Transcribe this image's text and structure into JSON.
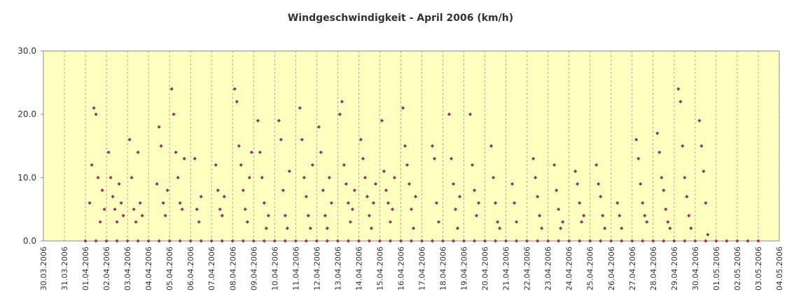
{
  "chart_data": {
    "type": "scatter",
    "title": "Windgeschwindigkeit - April 2006 (km/h)",
    "color": "#993366",
    "background": "#ffffc0",
    "grid": "x",
    "xlim": [
      0,
      35
    ],
    "ylim": [
      0,
      30
    ],
    "yticks": [
      {
        "value": 0,
        "label": "0.0"
      },
      {
        "value": 10,
        "label": "10.0"
      },
      {
        "value": 20,
        "label": "20.0"
      },
      {
        "value": 30,
        "label": "30.0"
      }
    ],
    "xticks": [
      {
        "value": 0,
        "label": "30.03.2006"
      },
      {
        "value": 1,
        "label": "31.03.2006"
      },
      {
        "value": 2,
        "label": "01.04.2006"
      },
      {
        "value": 3,
        "label": "02.04.2006"
      },
      {
        "value": 4,
        "label": "03.04.2006"
      },
      {
        "value": 5,
        "label": "04.04.2006"
      },
      {
        "value": 6,
        "label": "05.04.2006"
      },
      {
        "value": 7,
        "label": "06.04.2006"
      },
      {
        "value": 8,
        "label": "07.04.2006"
      },
      {
        "value": 9,
        "label": "08.04.2006"
      },
      {
        "value": 10,
        "label": "09.04.2006"
      },
      {
        "value": 11,
        "label": "10.04.2006"
      },
      {
        "value": 12,
        "label": "11.04.2006"
      },
      {
        "value": 13,
        "label": "12.04.2006"
      },
      {
        "value": 14,
        "label": "13.04.2006"
      },
      {
        "value": 15,
        "label": "14.04.2006"
      },
      {
        "value": 16,
        "label": "15.04.2006"
      },
      {
        "value": 17,
        "label": "16.04.2006"
      },
      {
        "value": 18,
        "label": "17.04.2006"
      },
      {
        "value": 19,
        "label": "18.04.2006"
      },
      {
        "value": 20,
        "label": "19.04.2006"
      },
      {
        "value": 21,
        "label": "20.04.2006"
      },
      {
        "value": 22,
        "label": "21.04.2006"
      },
      {
        "value": 23,
        "label": "22.04.2006"
      },
      {
        "value": 24,
        "label": "23.04.2006"
      },
      {
        "value": 25,
        "label": "24.04.2006"
      },
      {
        "value": 26,
        "label": "25.04.2006"
      },
      {
        "value": 27,
        "label": "26.04.2006"
      },
      {
        "value": 28,
        "label": "27.04.2006"
      },
      {
        "value": 29,
        "label": "28.04.2006"
      },
      {
        "value": 30,
        "label": "29.04.2006"
      },
      {
        "value": 31,
        "label": "30.04.2006"
      },
      {
        "value": 32,
        "label": "01.05.2006"
      },
      {
        "value": 33,
        "label": "02.05.2006"
      },
      {
        "value": 34,
        "label": "03.05.2006"
      },
      {
        "value": 35,
        "label": "04.05.2006"
      }
    ],
    "x": [
      2.2,
      2.3,
      2.4,
      2.5,
      2.6,
      2.7,
      2.8,
      2.9,
      3.1,
      3.2,
      3.3,
      3.4,
      3.5,
      3.6,
      3.7,
      3.8,
      4.1,
      4.2,
      4.3,
      4.4,
      4.5,
      4.6,
      4.7,
      5.4,
      5.5,
      5.6,
      5.7,
      5.8,
      5.9,
      6.1,
      6.2,
      6.3,
      6.4,
      6.5,
      6.6,
      6.7,
      7.2,
      7.3,
      7.4,
      7.5,
      8.2,
      8.3,
      8.4,
      8.5,
      8.6,
      9.1,
      9.2,
      9.3,
      9.4,
      9.5,
      9.6,
      9.7,
      9.8,
      9.9,
      10.2,
      10.3,
      10.4,
      10.5,
      10.6,
      10.7,
      11.2,
      11.3,
      11.4,
      11.5,
      11.6,
      11.7,
      12.2,
      12.3,
      12.4,
      12.5,
      12.6,
      12.7,
      12.8,
      13.1,
      13.2,
      13.3,
      13.4,
      13.5,
      13.6,
      13.7,
      14.1,
      14.2,
      14.3,
      14.4,
      14.5,
      14.6,
      14.7,
      14.8,
      15.1,
      15.2,
      15.3,
      15.4,
      15.5,
      15.6,
      15.7,
      15.8,
      16.1,
      16.2,
      16.3,
      16.4,
      16.5,
      16.6,
      16.7,
      17.1,
      17.2,
      17.3,
      17.4,
      17.5,
      17.6,
      17.7,
      18.5,
      18.6,
      18.7,
      18.8,
      19.3,
      19.4,
      19.5,
      19.6,
      19.7,
      19.8,
      20.3,
      20.4,
      20.5,
      20.6,
      20.7,
      21.3,
      21.4,
      21.5,
      21.6,
      21.7,
      22.3,
      22.4,
      22.5,
      23.3,
      23.4,
      23.5,
      23.6,
      23.7,
      24.3,
      24.4,
      24.5,
      24.6,
      24.7,
      25.3,
      25.4,
      25.5,
      25.6,
      25.7,
      26.3,
      26.4,
      26.5,
      26.6,
      26.7,
      27.3,
      27.4,
      27.5,
      28.2,
      28.3,
      28.4,
      28.5,
      28.6,
      28.7,
      29.2,
      29.3,
      29.4,
      29.5,
      29.6,
      29.7,
      29.8,
      30.2,
      30.3,
      30.4,
      30.5,
      30.6,
      30.7,
      30.8,
      31.2,
      31.3,
      31.4,
      31.5,
      31.6,
      2,
      2.5,
      3,
      3.5,
      4,
      4.5,
      5,
      5.5,
      6,
      6.5,
      7,
      7.5,
      8,
      8.5,
      9,
      9.5,
      10,
      10.5,
      11,
      11.5,
      12,
      12.5,
      13,
      13.5,
      14,
      14.5,
      15,
      15.5,
      16,
      16.5,
      17,
      17.5,
      18,
      18.5,
      19,
      19.5,
      20,
      20.5,
      21,
      21.5,
      22,
      22.5,
      23,
      23.5,
      24,
      24.5,
      25,
      25.5,
      26,
      26.5,
      27,
      27.5,
      28,
      28.5,
      29,
      29.5,
      30,
      30.5,
      31,
      31.5,
      32,
      32.5,
      33,
      33.5,
      34
    ],
    "values": [
      6,
      12,
      21,
      20,
      10,
      3,
      8,
      5,
      14,
      10,
      7,
      5,
      3,
      9,
      6,
      4,
      16,
      10,
      5,
      3,
      14,
      6,
      4,
      9,
      18,
      15,
      6,
      4,
      8,
      24,
      20,
      14,
      10,
      6,
      5,
      13,
      13,
      5,
      3,
      7,
      12,
      8,
      5,
      4,
      7,
      24,
      22,
      15,
      12,
      8,
      5,
      3,
      10,
      14,
      19,
      14,
      10,
      6,
      2,
      4,
      19,
      16,
      8,
      4,
      2,
      11,
      21,
      16,
      10,
      7,
      4,
      2,
      12,
      18,
      14,
      8,
      4,
      2,
      10,
      6,
      20,
      22,
      12,
      9,
      6,
      3,
      5,
      8,
      16,
      13,
      10,
      7,
      4,
      2,
      6,
      9,
      19,
      11,
      8,
      6,
      3,
      5,
      10,
      21,
      15,
      12,
      9,
      5,
      2,
      7,
      15,
      13,
      6,
      3,
      20,
      13,
      9,
      5,
      2,
      7,
      20,
      12,
      8,
      4,
      6,
      15,
      10,
      6,
      3,
      2,
      9,
      6,
      3,
      13,
      10,
      7,
      4,
      2,
      12,
      8,
      5,
      2,
      3,
      11,
      9,
      6,
      3,
      4,
      12,
      9,
      7,
      4,
      2,
      6,
      4,
      2,
      16,
      13,
      9,
      6,
      4,
      3,
      17,
      14,
      10,
      8,
      5,
      3,
      2,
      24,
      22,
      15,
      10,
      7,
      4,
      2,
      19,
      15,
      11,
      6,
      1,
      0,
      0,
      0,
      0,
      0,
      0,
      0,
      0,
      0,
      0,
      0,
      0,
      0,
      0,
      0,
      0,
      0,
      0,
      0,
      0,
      0,
      0,
      0,
      0,
      0,
      0,
      0,
      0,
      0,
      0,
      0,
      0,
      0,
      0,
      0,
      0,
      0,
      0,
      0,
      0,
      0,
      0,
      0,
      0,
      0,
      0,
      0,
      0,
      0,
      0,
      0,
      0,
      0,
      0,
      0,
      0,
      0,
      0,
      0,
      0,
      0,
      0,
      0,
      0,
      0
    ]
  }
}
